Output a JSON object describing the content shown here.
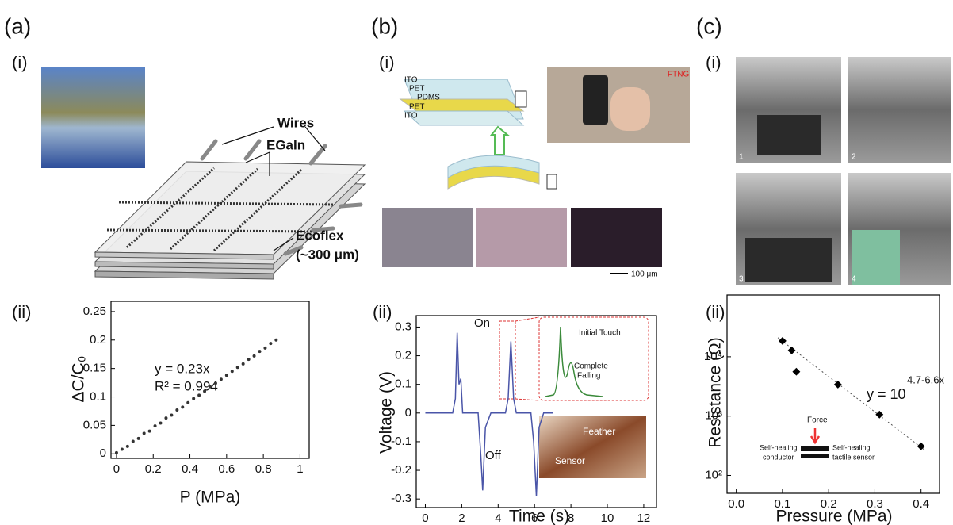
{
  "panels": [
    {
      "label": "(a)",
      "sub": [
        "(i)",
        "(ii)"
      ]
    },
    {
      "label": "(b)",
      "sub": [
        "(i)",
        "(ii)"
      ]
    },
    {
      "label": "(c)",
      "sub": [
        "(i)",
        "(ii)"
      ]
    }
  ],
  "annotations": {
    "a_i": [
      "Wires",
      "EGaIn",
      "Ecoflex",
      "(~300 μm)"
    ],
    "b_i": [
      "ITO",
      "PET",
      "PDMS",
      "PET",
      "ITO",
      "FTNG",
      "100 μm"
    ],
    "c_i": [
      "1",
      "2",
      "3",
      "4"
    ]
  },
  "chart_data": [
    {
      "type": "scatter",
      "xlabel": "P (MPa)",
      "ylabel": "ΔC/C₀",
      "annotations": [
        "y = 0.23x",
        "R² = 0.994"
      ],
      "x": [
        0,
        0.03,
        0.06,
        0.09,
        0.12,
        0.15,
        0.18,
        0.21,
        0.24,
        0.27,
        0.3,
        0.33,
        0.36,
        0.39,
        0.42,
        0.45,
        0.48,
        0.51,
        0.54,
        0.57,
        0.6,
        0.63,
        0.66,
        0.69,
        0.72,
        0.75,
        0.78,
        0.81,
        0.84,
        0.87
      ],
      "series": [
        {
          "color": "#333333",
          "values": [
            0.002,
            0.008,
            0.013,
            0.022,
            0.027,
            0.036,
            0.04,
            0.049,
            0.054,
            0.063,
            0.068,
            0.077,
            0.082,
            0.09,
            0.097,
            0.103,
            0.11,
            0.118,
            0.124,
            0.131,
            0.138,
            0.145,
            0.152,
            0.158,
            0.166,
            0.172,
            0.18,
            0.186,
            0.194,
            0.2
          ]
        }
      ],
      "xlim": [
        -0.03,
        1.05
      ],
      "ylim": [
        -0.008,
        0.268
      ],
      "xticks": [
        0,
        0.2,
        0.4,
        0.6,
        0.8,
        1
      ],
      "yticks": [
        0,
        0.05,
        0.1,
        0.15,
        0.2,
        0.25
      ]
    },
    {
      "type": "line",
      "xlabel": "Time (s)",
      "ylabel": "Voltage (V)",
      "annotations": [
        "On",
        "Off"
      ],
      "inset": [
        "Initial Touch",
        "Complete",
        "Falling",
        "Feather",
        "Sensor"
      ],
      "x": [
        0,
        1.5,
        1.65,
        1.75,
        1.85,
        1.95,
        2.05,
        2.3,
        2.9,
        3.05,
        3.15,
        3.3,
        3.6,
        4.4,
        4.55,
        4.7,
        4.85,
        5.0,
        5.8,
        5.95,
        6.1,
        6.25,
        6.5,
        7
      ],
      "series": [
        {
          "color": "#4a55a8",
          "values": [
            0,
            0,
            0.05,
            0.28,
            0.1,
            0.12,
            0,
            0,
            0,
            -0.15,
            -0.27,
            -0.05,
            0,
            0,
            0.05,
            0.25,
            0.05,
            0,
            0,
            -0.1,
            -0.29,
            -0.05,
            0,
            0
          ]
        }
      ],
      "xlim": [
        -0.5,
        12.7
      ],
      "ylim": [
        -0.33,
        0.34
      ],
      "xticks": [
        0,
        2,
        4,
        6,
        8,
        10,
        12
      ],
      "yticks": [
        -0.3,
        -0.2,
        -0.1,
        0,
        0.1,
        0.2,
        0.3
      ]
    },
    {
      "type": "scatter",
      "log_y": true,
      "xlabel": "Pressure (MPa)",
      "ylabel": "Resistance (Ω)",
      "annotations": [
        "y = 10",
        "4.7-6.6x"
      ],
      "inset": [
        "Force",
        "Self-healing",
        "conductor",
        "Self-healing",
        "tactile sensor"
      ],
      "x": [
        0.1,
        0.12,
        0.13,
        0.22,
        0.31,
        0.4
      ],
      "series": [
        {
          "color": "#000000",
          "values": [
            18500,
            12800,
            5600,
            3400,
            1060,
            310
          ]
        }
      ],
      "fit_line": {
        "x": [
          0.09,
          0.41
        ],
        "values": [
          21000,
          260
        ]
      },
      "xlim": [
        -0.02,
        0.44
      ],
      "ylim": [
        50,
        110000
      ],
      "xticks": [
        {
          "value": 0,
          "label": "0.0"
        },
        0.1,
        0.2,
        0.3,
        0.4
      ],
      "yticks": [
        {
          "value": 100,
          "label": "10²"
        },
        {
          "value": 1000,
          "label": "10³"
        },
        {
          "value": 10000,
          "label": "10⁴"
        }
      ]
    }
  ]
}
